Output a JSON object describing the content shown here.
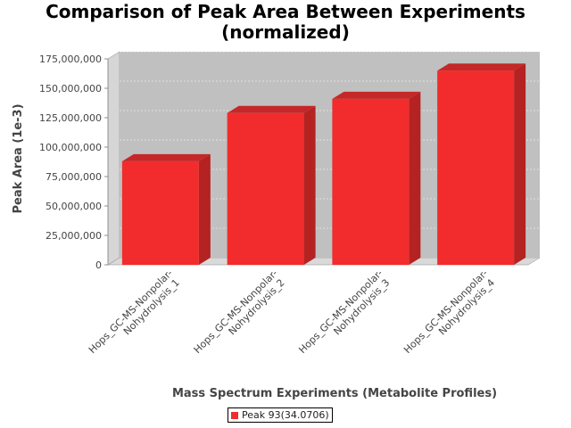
{
  "chart_data": {
    "type": "bar",
    "title": [
      "Comparison of Peak Area Between Experiments",
      "(normalized)"
    ],
    "xlabel": "Mass Spectrum Experiments (Metabolite Profiles)",
    "ylabel": "Peak Area (1e-3)",
    "categories": [
      [
        "Hops_GC-MS-Nonpolar-",
        "Nohydrolysis_1"
      ],
      [
        "Hops_GC-MS-Nonpolar-",
        "Nohydrolysis_2"
      ],
      [
        "Hops_GC-MS-Nonpolar-",
        "Nohydrolysis_3"
      ],
      [
        "Hops_GC-MS-Nonpolar-",
        "Nohydrolysis_4"
      ]
    ],
    "series": [
      {
        "name": "Peak 93(34.0706)",
        "values": [
          88000000,
          129000000,
          141000000,
          165000000
        ]
      }
    ],
    "ylim": [
      0,
      175000000
    ],
    "yticks": [
      0,
      25000000,
      50000000,
      75000000,
      100000000,
      125000000,
      150000000,
      175000000
    ],
    "ytick_labels": [
      "0",
      "25,000,000",
      "50,000,000",
      "75,000,000",
      "100,000,000",
      "125,000,000",
      "150,000,000",
      "175,000,000"
    ],
    "grid": true,
    "legend_position": "bottom",
    "colors": {
      "bar_front": "#f22c2c",
      "bar_side": "#b52222",
      "bar_top": "#c42828",
      "plot_bg": "#c0c0c0"
    }
  }
}
